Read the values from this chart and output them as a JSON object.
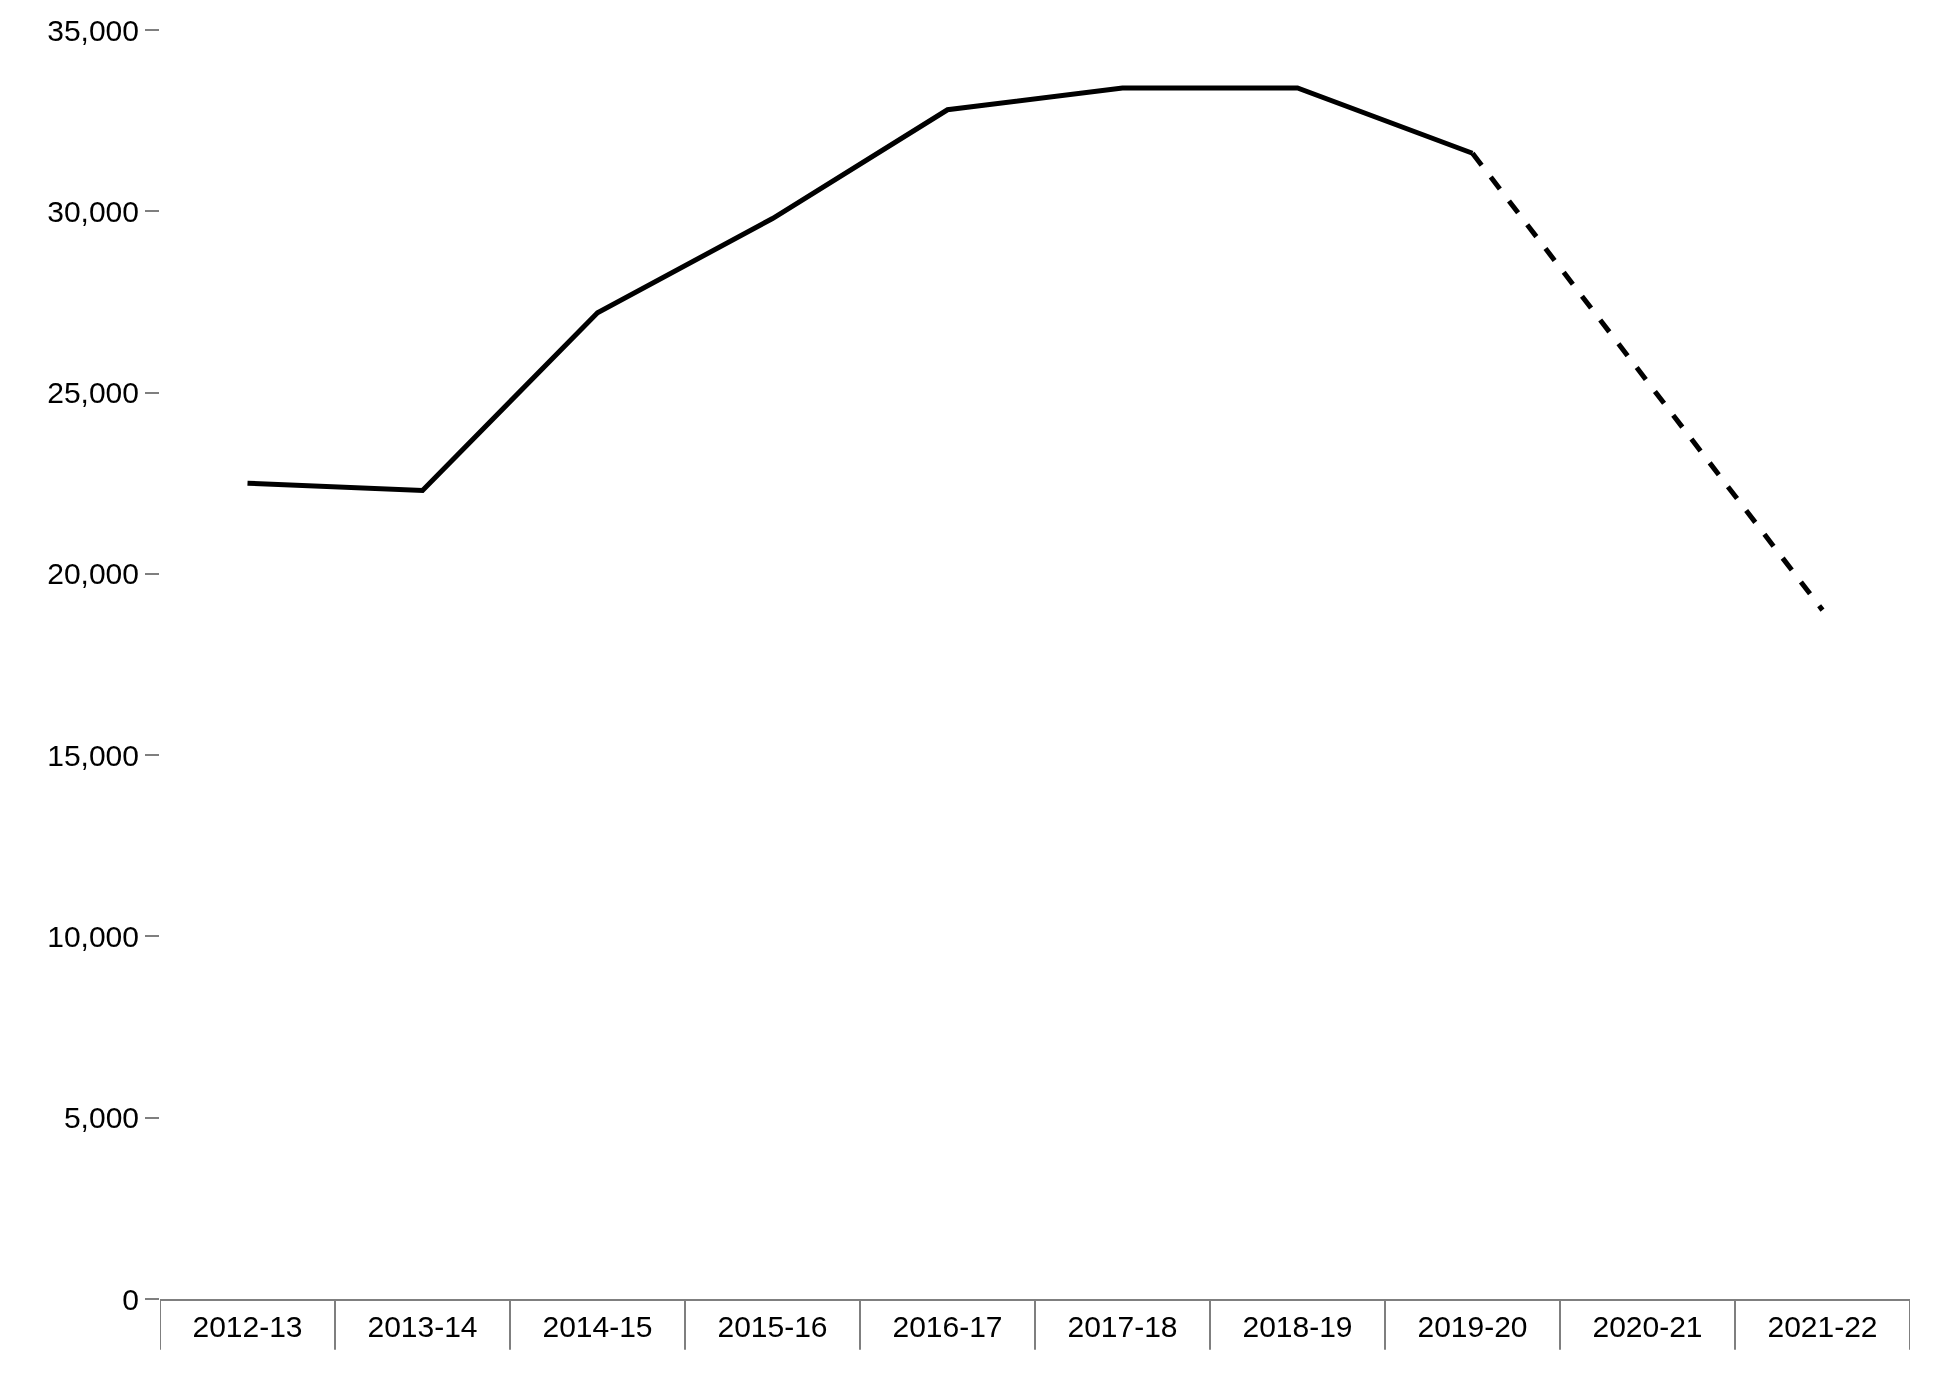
{
  "chart_data": {
    "type": "line",
    "categories": [
      "2012-13",
      "2013-14",
      "2014-15",
      "2015-16",
      "2016-17",
      "2017-18",
      "2018-19",
      "2019-20",
      "2020-21",
      "2021-22"
    ],
    "series": [
      {
        "color": "#000000",
        "line_style": "solid",
        "values": [
          22500,
          22300,
          27200,
          29800,
          32800,
          33400,
          33400,
          31600,
          null,
          null
        ]
      },
      {
        "color": "#000000",
        "line_style": "dashed",
        "values": [
          null,
          null,
          null,
          null,
          null,
          null,
          null,
          31600,
          25300,
          19000
        ]
      }
    ],
    "ylim": [
      0,
      35000
    ],
    "yticks": [
      {
        "value": 0,
        "label": "0"
      },
      {
        "value": 5000,
        "label": "5,000"
      },
      {
        "value": 10000,
        "label": "10,000"
      },
      {
        "value": 15000,
        "label": "15,000"
      },
      {
        "value": 20000,
        "label": "20,000"
      },
      {
        "value": 25000,
        "label": "25,000"
      },
      {
        "value": 30000,
        "label": "30,000"
      },
      {
        "value": 35000,
        "label": "35,000"
      }
    ],
    "grid": false,
    "marker": "none"
  }
}
